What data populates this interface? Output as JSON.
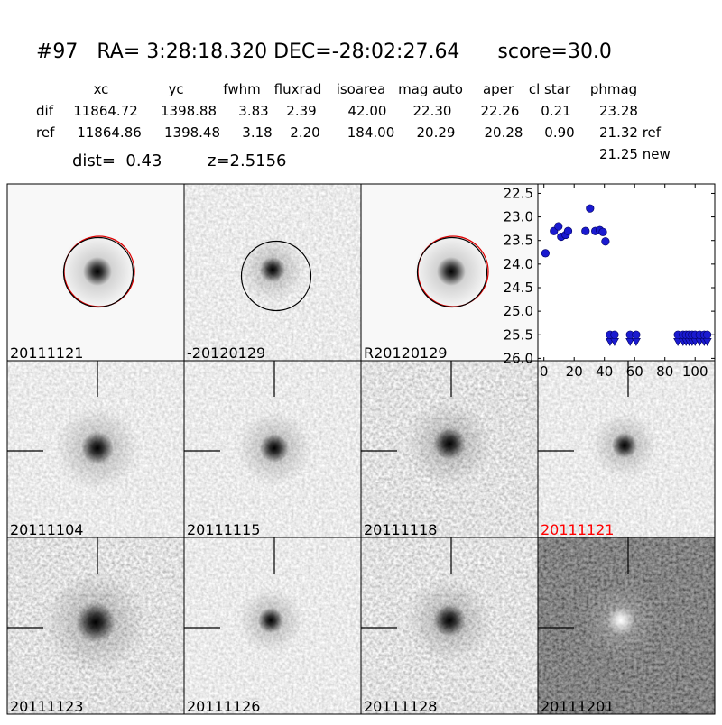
{
  "header": {
    "title": "#97   RA= 3:28:18.320 DEC=-28:02:27.64      score=30.0"
  },
  "table": {
    "columns": [
      "xc",
      "yc",
      "fwhm",
      "fluxrad",
      "isoarea",
      "mag auto",
      "aper",
      "cl star",
      "phmag"
    ],
    "rows": [
      {
        "label": "dif",
        "cells": [
          "11864.72",
          "1398.88",
          "3.83",
          "2.39",
          "42.00",
          "22.30",
          "22.26",
          "0.21",
          "23.28"
        ]
      },
      {
        "label": "ref",
        "cells": [
          "11864.86",
          "1398.48",
          "3.18",
          "2.20",
          "184.00",
          "20.29",
          "20.28",
          "0.90",
          "21.32 ref"
        ]
      }
    ],
    "extra": "21.25 new"
  },
  "dist": "dist=  0.43",
  "z": "z=2.5156",
  "panels": [
    {
      "label": "20111121"
    },
    {
      "label": "-20120129"
    },
    {
      "label": "R20120129"
    },
    {
      "label": "20111104"
    },
    {
      "label": "20111115"
    },
    {
      "label": "20111118"
    },
    {
      "label": "20111121"
    },
    {
      "label": "20111123"
    },
    {
      "label": "20111126"
    },
    {
      "label": "20111128"
    },
    {
      "label": "20111201"
    }
  ],
  "chart_data": {
    "type": "scatter",
    "y_inverted": true,
    "xlim": [
      -4,
      113
    ],
    "ylim": [
      22.3,
      26.05
    ],
    "xticks": [
      0,
      20,
      40,
      60,
      80,
      100
    ],
    "yticks": [
      22.5,
      {
        "value": 23,
        "label": "23.0"
      },
      23.5,
      {
        "value": 24,
        "label": "24.0"
      },
      24.5,
      {
        "value": 25,
        "label": "25.0"
      },
      25.5,
      {
        "value": 26,
        "label": "26.0"
      }
    ],
    "series": [
      {
        "color": "#1a1ad0",
        "marker": "circle",
        "x": [
          1,
          6.6,
          9.6,
          11.4,
          14.4,
          16,
          27.5,
          30.5,
          34,
          37,
          39,
          40.7
        ],
        "values": [
          23.77,
          23.3,
          23.2,
          23.42,
          23.38,
          23.3,
          23.3,
          22.82,
          23.3,
          23.28,
          23.32,
          23.52
        ]
      },
      {
        "color": "#1a1ad0",
        "marker": "limit",
        "x": [
          43.7,
          46.7,
          57,
          61,
          88.6,
          92,
          94,
          96,
          98,
          100,
          103,
          106,
          108
        ],
        "values": [
          25.5,
          25.5,
          25.5,
          25.5,
          25.5,
          25.5,
          25.5,
          25.5,
          25.5,
          25.5,
          25.5,
          25.5,
          25.5
        ]
      }
    ]
  }
}
